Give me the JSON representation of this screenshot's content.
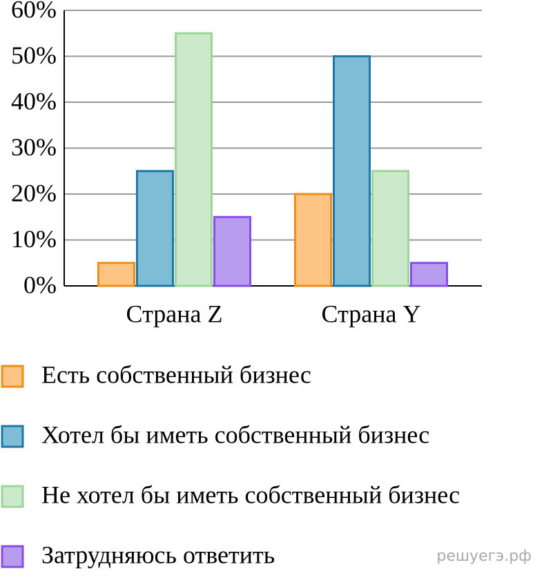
{
  "chart_data": {
    "type": "bar",
    "categories": [
      "Страна Z",
      "Страна Y"
    ],
    "series": [
      {
        "name": "Есть собственный бизнес",
        "color": "#fdc484",
        "edgecolor": "#f08c1a",
        "values": [
          5,
          20
        ]
      },
      {
        "name": "Хотел бы иметь собственный бизнес",
        "color": "#7fbcd6",
        "edgecolor": "#1c78a8",
        "values": [
          25,
          50
        ]
      },
      {
        "name": "Не хотел бы иметь собственный бизнес",
        "color": "#cde9cc",
        "edgecolor": "#9cd597",
        "values": [
          55,
          25
        ]
      },
      {
        "name": "Затрудняюсь ответить",
        "color": "#b89cf0",
        "edgecolor": "#8a4ce8",
        "values": [
          15,
          5
        ]
      }
    ],
    "ylim": [
      0,
      60
    ],
    "yticks": [
      {
        "value": 0,
        "label": "0%"
      },
      {
        "value": 10,
        "label": "10%"
      },
      {
        "value": 20,
        "label": "20%"
      },
      {
        "value": 30,
        "label": "30%"
      },
      {
        "value": 40,
        "label": "40%"
      },
      {
        "value": 50,
        "label": "50%"
      },
      {
        "value": 60,
        "label": "60%"
      }
    ],
    "grid": true,
    "watermark": "решуегэ.рф"
  }
}
